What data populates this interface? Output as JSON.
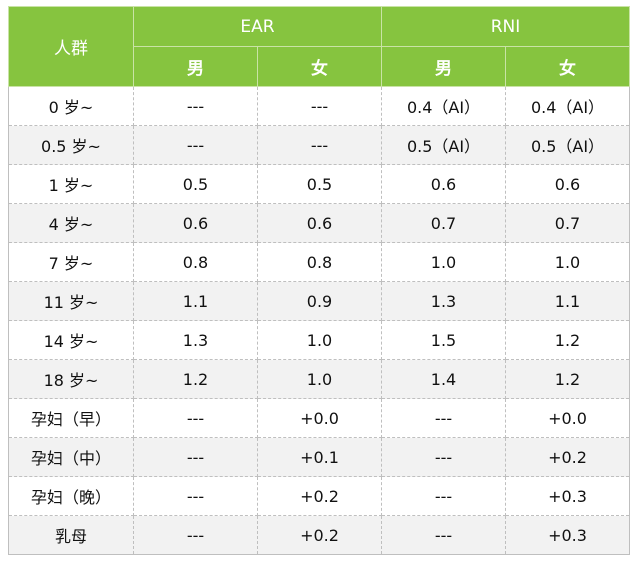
{
  "table": {
    "header": {
      "group_label": "人群",
      "ear_label": "EAR",
      "rni_label": "RNI",
      "sub": [
        "男",
        "女",
        "男",
        "女"
      ]
    },
    "rows": [
      {
        "group": "0 岁~",
        "ear_m": "---",
        "ear_f": "---",
        "rni_m": "0.4（AI）",
        "rni_f": "0.4（AI）"
      },
      {
        "group": "0.5 岁~",
        "ear_m": "---",
        "ear_f": "---",
        "rni_m": "0.5（AI）",
        "rni_f": "0.5（AI）"
      },
      {
        "group": "1 岁~",
        "ear_m": "0.5",
        "ear_f": "0.5",
        "rni_m": "0.6",
        "rni_f": "0.6"
      },
      {
        "group": "4 岁~",
        "ear_m": "0.6",
        "ear_f": "0.6",
        "rni_m": "0.7",
        "rni_f": "0.7"
      },
      {
        "group": "7 岁~",
        "ear_m": "0.8",
        "ear_f": "0.8",
        "rni_m": "1.0",
        "rni_f": "1.0"
      },
      {
        "group": "11 岁~",
        "ear_m": "1.1",
        "ear_f": "0.9",
        "rni_m": "1.3",
        "rni_f": "1.1"
      },
      {
        "group": "14 岁~",
        "ear_m": "1.3",
        "ear_f": "1.0",
        "rni_m": "1.5",
        "rni_f": "1.2"
      },
      {
        "group": "18 岁~",
        "ear_m": "1.2",
        "ear_f": "1.0",
        "rni_m": "1.4",
        "rni_f": "1.2"
      },
      {
        "group": "孕妇（早）",
        "ear_m": "---",
        "ear_f": "+0.0",
        "rni_m": "---",
        "rni_f": "+0.0"
      },
      {
        "group": "孕妇（中）",
        "ear_m": "---",
        "ear_f": "+0.1",
        "rni_m": "---",
        "rni_f": "+0.2"
      },
      {
        "group": "孕妇（晚）",
        "ear_m": "---",
        "ear_f": "+0.2",
        "rni_m": "---",
        "rni_f": "+0.3"
      },
      {
        "group": "乳母",
        "ear_m": "---",
        "ear_f": "+0.2",
        "rni_m": "---",
        "rni_f": "+0.3"
      }
    ]
  },
  "colors": {
    "header_green": "#86c43f",
    "row_alt": "#f2f2f2"
  }
}
